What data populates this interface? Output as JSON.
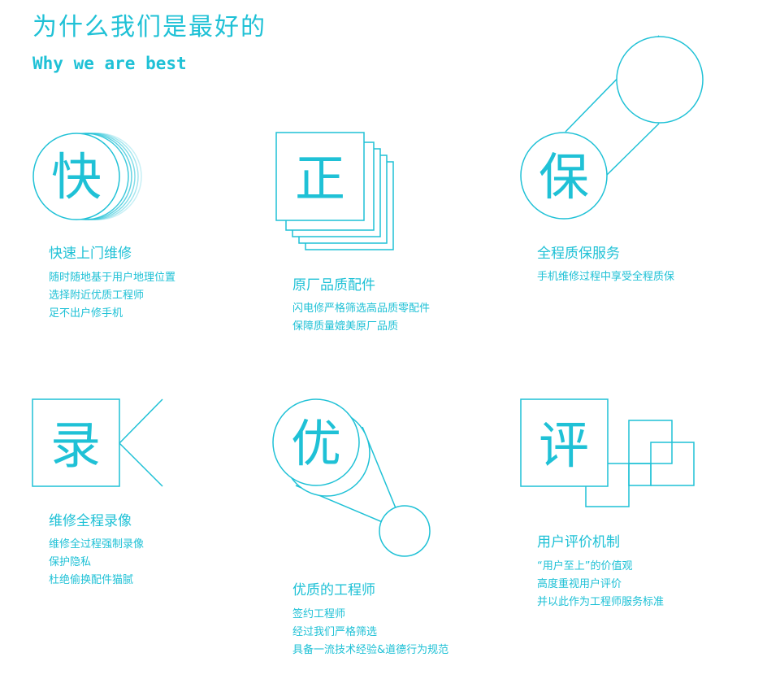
{
  "header": {
    "title": "为什么我们是最好的",
    "subtitle": "Why we are best"
  },
  "theme": {
    "accent": "#1fc1d6"
  },
  "cards": [
    {
      "glyph": "快",
      "icon": "circle-stack-icon",
      "title": "快速上门维修",
      "lines": [
        "随时随地基于用户地理位置",
        "选择附近优质工程师",
        "足不出户修手机"
      ]
    },
    {
      "glyph": "正",
      "icon": "square-stack-icon",
      "title": "原厂品质配件",
      "lines": [
        "闪电修严格筛选高品质零配件",
        "保障质量媲美原厂品质"
      ]
    },
    {
      "glyph": "保",
      "icon": "linked-circles-icon",
      "title": "全程质保服务",
      "lines": [
        "手机维修过程中享受全程质保"
      ]
    },
    {
      "glyph": "录",
      "icon": "camera-square-icon",
      "title": "维修全程录像",
      "lines": [
        "维修全过程强制录像",
        "保护隐私",
        "杜绝偷换配件猫腻"
      ]
    },
    {
      "glyph": "优",
      "icon": "magnifier-circles-icon",
      "title": "优质的工程师",
      "lines": [
        "签约工程师",
        "经过我们严格筛选",
        "具备一流技术经验&道德行为规范"
      ]
    },
    {
      "glyph": "评",
      "icon": "interlocked-squares-icon",
      "title": "用户评价机制",
      "lines": [
        "“用户至上”的价值观",
        "高度重视用户评价",
        "并以此作为工程师服务标准"
      ]
    }
  ]
}
